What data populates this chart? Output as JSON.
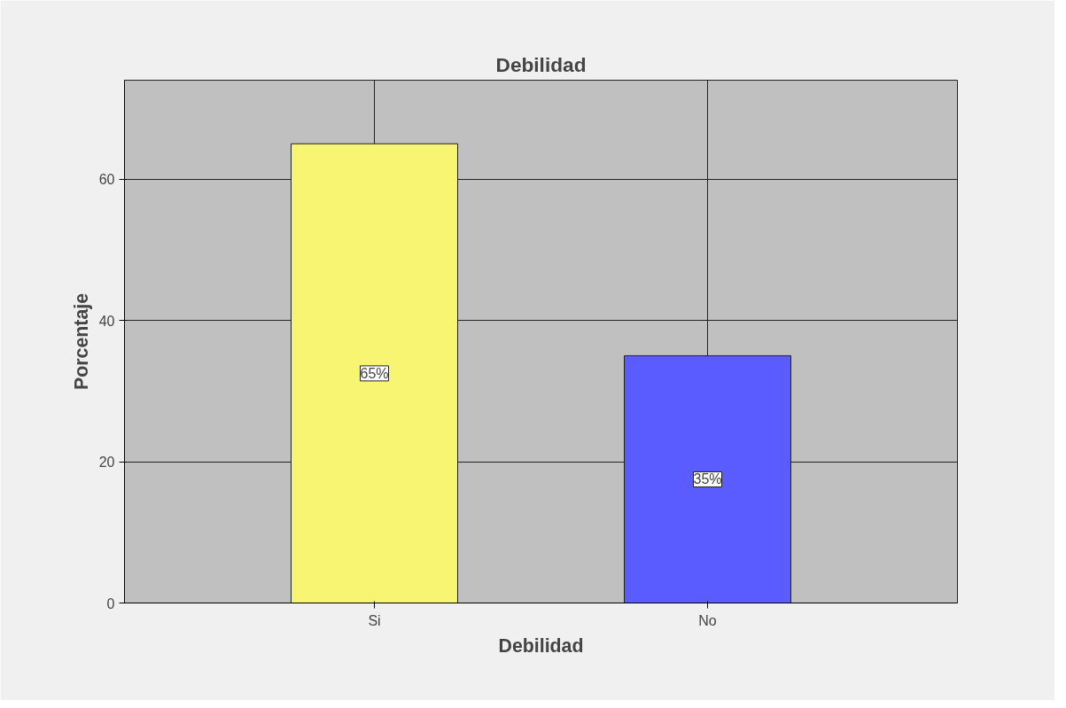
{
  "chart_data": {
    "type": "bar",
    "title": "Debilidad",
    "xlabel": "Debilidad",
    "ylabel": "Porcentaje",
    "categories": [
      "Si",
      "No"
    ],
    "values": [
      65,
      35
    ],
    "colors": [
      "#f8f573",
      "#5a5cff"
    ],
    "value_labels": [
      "65%",
      "35%"
    ],
    "ylim": [
      0,
      74
    ],
    "yticks": [
      0,
      20,
      40,
      60
    ],
    "grid": true
  }
}
